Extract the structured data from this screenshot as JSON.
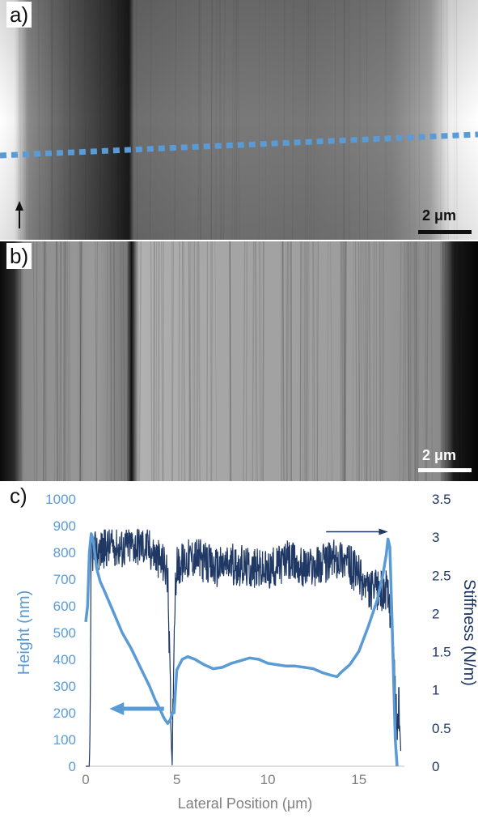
{
  "panels": {
    "a": {
      "label": "a)",
      "scale_bar": "2 μm"
    },
    "b": {
      "label": "b)",
      "scale_bar": "2 μm"
    },
    "c": {
      "label": "c)"
    }
  },
  "colors": {
    "height": "#5b9bd5",
    "stiffness": "#1f3864",
    "axis_text": "#7f7f7f"
  },
  "chart_data": {
    "type": "line",
    "xlabel": "Lateral Position (μm)",
    "ylabel_left": "Height (nm)",
    "ylabel_right": "Stiffness (N/m)",
    "xlim": [
      0,
      17.5
    ],
    "ylim_left": [
      0,
      1000
    ],
    "ylim_right": [
      0,
      3.5
    ],
    "x_ticks": [
      0,
      5,
      10,
      15
    ],
    "y_ticks_left": [
      0,
      100,
      200,
      300,
      400,
      500,
      600,
      700,
      800,
      900,
      1000
    ],
    "y_ticks_right": [
      0,
      0.5,
      1,
      1.5,
      2,
      2.5,
      3,
      3.5
    ],
    "grid": false,
    "series": [
      {
        "axis": "left",
        "x": [
          0,
          0.1,
          0.2,
          0.3,
          0.4,
          0.6,
          0.8,
          1.0,
          1.5,
          2.0,
          2.5,
          3.0,
          3.5,
          3.8,
          4.1,
          4.3,
          4.5,
          4.65,
          4.75,
          4.85,
          5.0,
          5.3,
          5.6,
          6.0,
          6.5,
          7.0,
          7.5,
          8.0,
          8.5,
          9.0,
          9.5,
          10.0,
          10.5,
          11.0,
          11.5,
          12.0,
          12.5,
          13.0,
          13.5,
          13.8,
          14.0,
          14.5,
          15.0,
          15.5,
          16.0,
          16.3,
          16.5,
          16.6,
          16.7,
          16.8,
          17.0,
          17.1
        ],
        "y": [
          540,
          600,
          800,
          870,
          850,
          740,
          690,
          660,
          580,
          500,
          440,
          370,
          300,
          250,
          210,
          180,
          160,
          175,
          200,
          200,
          360,
          400,
          410,
          400,
          380,
          365,
          370,
          385,
          395,
          405,
          400,
          385,
          380,
          375,
          375,
          370,
          365,
          350,
          340,
          335,
          350,
          380,
          430,
          520,
          620,
          710,
          790,
          850,
          820,
          600,
          100,
          0
        ]
      },
      {
        "axis": "right",
        "x": [
          0,
          0.2,
          0.25,
          0.3,
          0.35,
          0.5,
          1.0,
          1.5,
          2.0,
          2.5,
          3.0,
          3.5,
          4.0,
          4.3,
          4.5,
          4.6,
          4.7,
          4.75,
          4.8,
          4.9,
          5.0,
          5.5,
          6.0,
          7.0,
          8.0,
          9.0,
          10.0,
          11.0,
          12.0,
          13.0,
          14.0,
          15.0,
          15.5,
          16.0,
          16.5,
          16.8,
          17.0,
          17.1,
          17.2,
          17.3
        ],
        "y": [
          0,
          0,
          0.7,
          2.9,
          2.8,
          2.8,
          2.85,
          2.9,
          2.85,
          2.9,
          2.9,
          2.85,
          2.7,
          2.65,
          2.5,
          1.5,
          0.3,
          0,
          1.0,
          2.3,
          2.6,
          2.7,
          2.75,
          2.6,
          2.65,
          2.6,
          2.55,
          2.7,
          2.6,
          2.65,
          2.75,
          2.5,
          2.3,
          2.3,
          2.3,
          2.0,
          1.0,
          0.5,
          0.8,
          0.2
        ]
      }
    ],
    "annotations": [
      {
        "type": "arrow",
        "direction": "left",
        "meaning": "height axis"
      },
      {
        "type": "arrow",
        "direction": "right",
        "meaning": "stiffness axis"
      }
    ]
  }
}
